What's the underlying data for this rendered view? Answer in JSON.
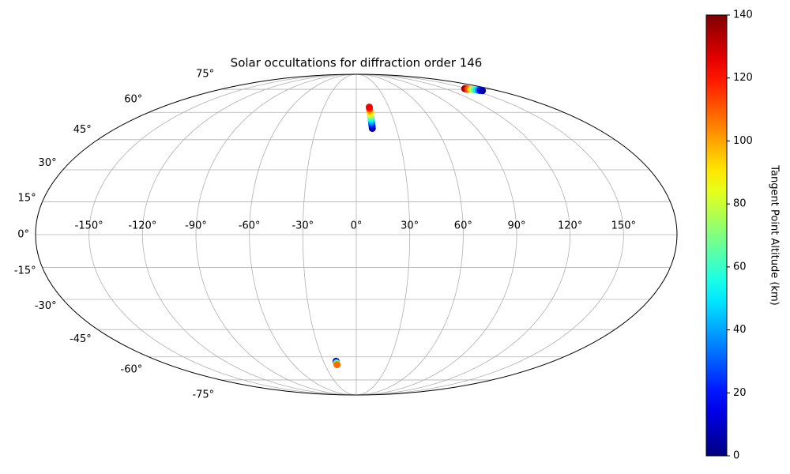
{
  "chart_data": {
    "type": "scatter",
    "projection": "mollweide",
    "title": "Solar occultations for diffraction order 146",
    "xlim": [
      -180,
      180
    ],
    "ylim": [
      -90,
      90
    ],
    "xticks": [
      {
        "value": -150,
        "label": "-150°"
      },
      {
        "value": -120,
        "label": "-120°"
      },
      {
        "value": -90,
        "label": "-90°"
      },
      {
        "value": -60,
        "label": "-60°"
      },
      {
        "value": -30,
        "label": "-30°"
      },
      {
        "value": 0,
        "label": "0°"
      },
      {
        "value": 30,
        "label": "30°"
      },
      {
        "value": 60,
        "label": "60°"
      },
      {
        "value": 90,
        "label": "90°"
      },
      {
        "value": 120,
        "label": "120°"
      },
      {
        "value": 150,
        "label": "150°"
      }
    ],
    "yticks": [
      {
        "value": -75,
        "label": "-75°"
      },
      {
        "value": -60,
        "label": "-60°"
      },
      {
        "value": -45,
        "label": "-45°"
      },
      {
        "value": -30,
        "label": "-30°"
      },
      {
        "value": -15,
        "label": "-15°"
      },
      {
        "value": 0,
        "label": "0°"
      },
      {
        "value": 15,
        "label": "15°"
      },
      {
        "value": 30,
        "label": "30°"
      },
      {
        "value": 45,
        "label": "45°"
      },
      {
        "value": 60,
        "label": "60°"
      },
      {
        "value": 75,
        "label": "75°"
      }
    ],
    "grid": true,
    "colormap": "jet",
    "clim": [
      0,
      140
    ],
    "cticks": [
      0,
      20,
      40,
      60,
      80,
      100,
      120,
      140
    ],
    "colorbar_label": "Tangent Point Altitude (km)",
    "x": [
      12,
      12,
      12,
      12,
      12,
      12,
      12,
      12,
      12,
      12,
      12,
      12,
      147,
      148.5,
      150,
      151.5,
      153,
      154.5,
      156,
      157.5,
      159,
      160.5,
      -18.5,
      -18.5,
      -18.5,
      -18.5,
      -18.5,
      -18.5,
      -18.5,
      -18.5
    ],
    "y": [
      51.0,
      52.1,
      53.2,
      54.3,
      55.4,
      56.5,
      57.6,
      58.7,
      59.8,
      60.9,
      62.0,
      63.1,
      75.5,
      75.3,
      75.2,
      75.0,
      74.8,
      74.7,
      74.5,
      74.3,
      74.2,
      74.0,
      -62.6,
      -62.9,
      -63.2,
      -63.5,
      -63.8,
      -64.1,
      -64.4,
      -64.7
    ],
    "c": [
      2,
      12,
      23,
      34,
      45,
      56,
      67,
      78,
      89,
      100,
      112,
      124,
      138,
      124,
      110,
      95,
      80,
      65,
      50,
      35,
      20,
      6,
      2,
      12,
      25,
      40,
      55,
      70,
      90,
      108
    ]
  }
}
